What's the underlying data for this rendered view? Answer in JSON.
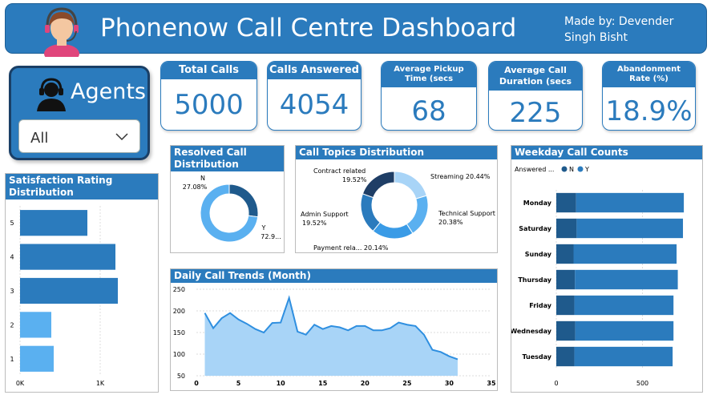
{
  "header": {
    "title": "Phonenow Call Centre Dashboard",
    "author_line1": "Made by: Devender",
    "author_line2": "Singh Bisht"
  },
  "agents": {
    "label": "Agents",
    "selected": "All"
  },
  "kpis": [
    {
      "label": "Total Calls",
      "value": "5000"
    },
    {
      "label": "Calls Answered",
      "value": "4054"
    },
    {
      "label": "Average Pickup Time (secs",
      "value": "68"
    },
    {
      "label": "Average Call Duration (secs",
      "value": "225"
    },
    {
      "label": "Abandonment Rate (%)",
      "value": "18.9%"
    }
  ],
  "colors": {
    "brand": "#2b7bbd",
    "dark": "#1f5a8c",
    "light": "#5ab0f0",
    "navy": "#1a3f66"
  },
  "panels": {
    "satisfaction": "Satisfaction Rating Distribution",
    "resolved": "Resolved Call Distribution",
    "topics": "Call Topics Distribution",
    "weekday": "Weekday Call Counts",
    "daily": "Daily Call Trends (Month)"
  },
  "chart_data": [
    {
      "id": "satisfaction",
      "type": "bar",
      "orientation": "horizontal",
      "categories": [
        "5",
        "4",
        "3",
        "2",
        "1"
      ],
      "values": [
        840,
        1190,
        1220,
        390,
        420
      ],
      "xlim": [
        0,
        1500
      ],
      "xticks": [
        "0K",
        "1K"
      ],
      "xtick_values": [
        0,
        1000
      ],
      "grid": true
    },
    {
      "id": "resolved",
      "type": "pie",
      "donut": true,
      "labels": [
        "N",
        "Y"
      ],
      "values": [
        27.08,
        72.92
      ],
      "display": [
        "27.08%",
        "72.9..."
      ]
    },
    {
      "id": "topics",
      "type": "pie",
      "donut": true,
      "labels": [
        "Streaming",
        "Technical Support",
        "Payment rela...",
        "Admin Support",
        "Contract related"
      ],
      "values": [
        20.44,
        20.38,
        20.14,
        19.52,
        19.52
      ],
      "display": [
        "Streaming 20.44%",
        "Technical Support 20.38%",
        "Payment rela... 20.14%",
        "Admin Support 19.52%",
        "Contract related 19.52%"
      ]
    },
    {
      "id": "weekday",
      "type": "bar",
      "orientation": "horizontal",
      "stacked": true,
      "legend_title": "Answered ...",
      "legend": [
        "N",
        "Y"
      ],
      "categories": [
        "Monday",
        "Saturday",
        "Sunday",
        "Thursday",
        "Friday",
        "Wednesday",
        "Tuesday"
      ],
      "series": [
        {
          "name": "N",
          "values": [
            115,
            118,
            100,
            108,
            105,
            110,
            105
          ]
        },
        {
          "name": "Y",
          "values": [
            625,
            617,
            598,
            597,
            575,
            570,
            570
          ]
        }
      ],
      "xlim": [
        0,
        800
      ],
      "xticks": [
        "0",
        "500"
      ],
      "xtick_values": [
        0,
        500
      ]
    },
    {
      "id": "daily",
      "type": "area",
      "x": [
        1,
        2,
        3,
        4,
        5,
        6,
        7,
        8,
        9,
        10,
        11,
        12,
        13,
        14,
        15,
        16,
        17,
        18,
        19,
        20,
        21,
        22,
        23,
        24,
        25,
        26,
        27,
        28,
        29,
        30,
        31
      ],
      "y": [
        195,
        160,
        183,
        195,
        180,
        170,
        158,
        150,
        172,
        173,
        230,
        152,
        145,
        168,
        158,
        165,
        162,
        155,
        165,
        165,
        155,
        155,
        160,
        173,
        168,
        165,
        145,
        110,
        105,
        95,
        88
      ],
      "xlim": [
        0,
        35
      ],
      "ylim": [
        50,
        250
      ],
      "xticks": [
        0,
        5,
        10,
        15,
        20,
        25,
        30,
        35
      ],
      "yticks": [
        50,
        100,
        150,
        200,
        250
      ]
    }
  ]
}
